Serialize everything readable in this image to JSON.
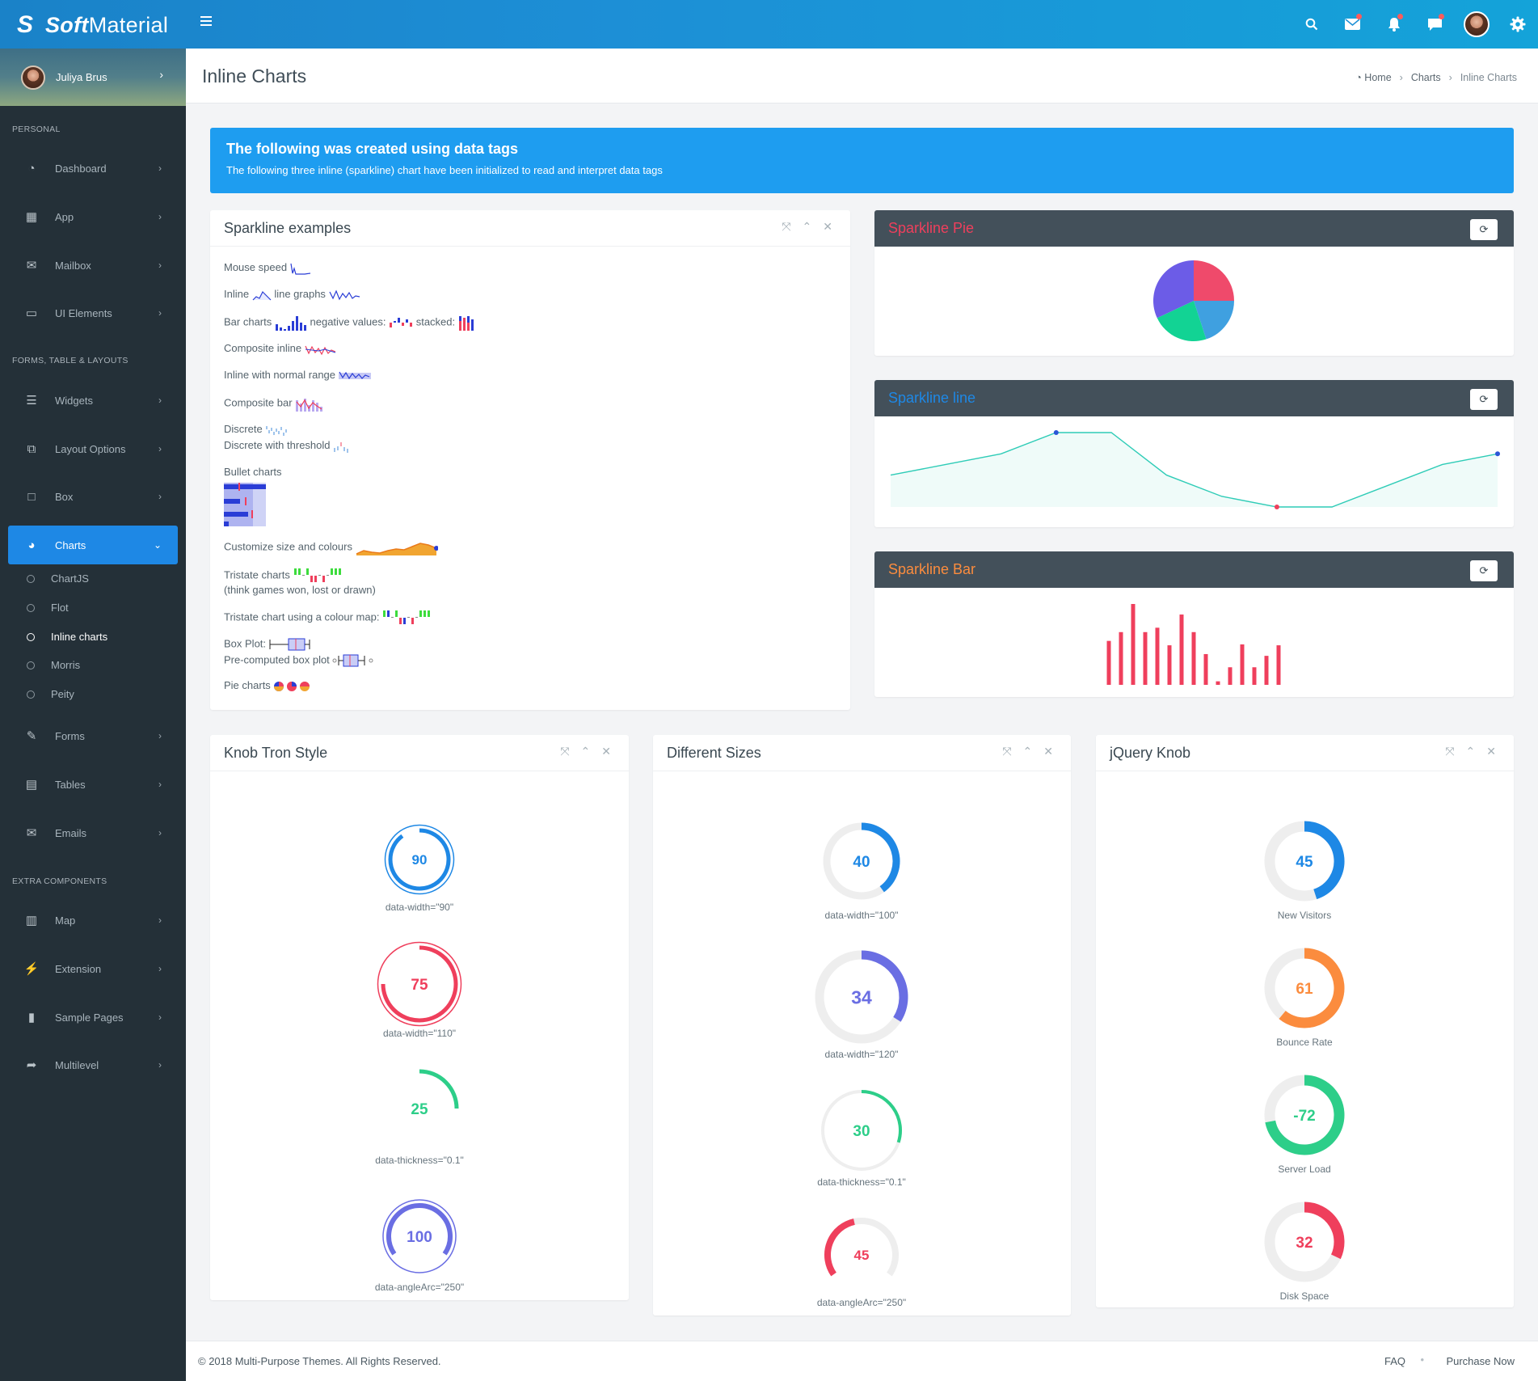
{
  "topbar": {
    "brand_bold": "Soft",
    "brand_light": "Material",
    "icons": [
      "search-icon",
      "envelope-icon",
      "bell-icon",
      "chat-icon",
      "user-avatar",
      "gear-icon"
    ]
  },
  "user": {
    "name": "Juliya Brus"
  },
  "sidebar": {
    "sections": [
      "PERSONAL",
      "FORMS, TABLE & LAYOUTS",
      "EXTRA COMPONENTS"
    ],
    "items": [
      {
        "label": "Dashboard",
        "icon": "dashboard-icon"
      },
      {
        "label": "App",
        "icon": "grid-icon"
      },
      {
        "label": "Mailbox",
        "icon": "envelope-icon"
      },
      {
        "label": "UI Elements",
        "icon": "laptop-icon"
      },
      {
        "label": "Widgets",
        "icon": "bars-icon"
      },
      {
        "label": "Layout Options",
        "icon": "copy-icon"
      },
      {
        "label": "Box",
        "icon": "square-icon"
      },
      {
        "label": "Charts",
        "icon": "pie-icon"
      },
      {
        "label": "Forms",
        "icon": "edit-icon"
      },
      {
        "label": "Tables",
        "icon": "table-icon"
      },
      {
        "label": "Emails",
        "icon": "envelope-open-icon"
      },
      {
        "label": "Map",
        "icon": "map-icon"
      },
      {
        "label": "Extension",
        "icon": "plug-icon"
      },
      {
        "label": "Sample Pages",
        "icon": "file-icon"
      },
      {
        "label": "Multilevel",
        "icon": "share-icon"
      }
    ],
    "charts_sub": [
      "ChartJS",
      "Flot",
      "Inline charts",
      "Morris",
      "Peity"
    ]
  },
  "page": {
    "title": "Inline Charts",
    "breadcrumb": [
      "Home",
      "Charts",
      "Inline Charts"
    ]
  },
  "callout": {
    "title": "The following was created using data tags",
    "text": "The following three inline (sparkline) chart have been initialized to read and interpret data tags"
  },
  "sparkline_box": {
    "title": "Sparkline examples",
    "labels": {
      "mouse": "Mouse speed",
      "inline": "Inline",
      "line_graphs": "line graphs",
      "bar": "Bar charts",
      "negative": "negative values:",
      "stacked": "stacked:",
      "composite": "Composite inline",
      "normal_range": "Inline with normal range",
      "composite_bar": "Composite bar",
      "discrete": "Discrete",
      "discrete_threshold": "Discrete with threshold",
      "bullet": "Bullet charts",
      "customize": "Customize size and colours",
      "tristate": "Tristate charts",
      "tristate_note": "(think games won, lost or drawn)",
      "tristate_map": "Tristate chart using a colour map:",
      "boxplot": "Box Plot:",
      "precomputed": "Pre-computed box plot",
      "pie": "Pie charts"
    }
  },
  "panels": {
    "pie": {
      "title": "Sparkline Pie",
      "color": "#ef3f5c"
    },
    "line": {
      "title": "Sparkline line",
      "color": "#1e88e5"
    },
    "bar": {
      "title": "Sparkline Bar",
      "color": "#fb8c3e"
    }
  },
  "knob_boxes": {
    "tron": "Knob Tron Style",
    "sizes": "Different Sizes",
    "jquery": "jQuery Knob"
  },
  "chart_data": [
    {
      "type": "pie",
      "slices": [
        {
          "value": 25,
          "color": "#ef4a6b"
        },
        {
          "value": 20,
          "color": "#3fa0e0"
        },
        {
          "value": 23,
          "color": "#12d394"
        },
        {
          "value": 32,
          "color": "#6c5ce7"
        }
      ]
    },
    {
      "type": "line",
      "values": [
        5,
        6,
        7,
        9,
        9,
        5,
        3,
        2,
        2,
        4,
        6,
        7
      ],
      "x": [
        0,
        1,
        2,
        3,
        4,
        5,
        6,
        7,
        8,
        9,
        10,
        11
      ],
      "color": "#2fccb7"
    },
    {
      "type": "bar",
      "values": [
        50,
        60,
        92,
        60,
        65,
        45,
        80,
        60,
        35,
        4,
        20,
        46,
        20,
        33,
        45
      ],
      "color": "#ef3f5c"
    }
  ],
  "knobs": {
    "tron": [
      {
        "value": "90",
        "label": "data-width=\"90\"",
        "color": "#1e88e5"
      },
      {
        "value": "75",
        "label": "data-width=\"110\"",
        "color": "#ef3f5c"
      },
      {
        "value": "25",
        "label": "data-thickness=\"0.1\"",
        "color": "#2dce89"
      },
      {
        "value": "100",
        "label": "data-angleArc=\"250\"",
        "color": "#6a6ee3"
      }
    ],
    "sizes": [
      {
        "value": "40",
        "label": "data-width=\"100\"",
        "color": "#1e88e5"
      },
      {
        "value": "34",
        "label": "data-width=\"120\"",
        "color": "#6a6ee3"
      },
      {
        "value": "30",
        "label": "data-thickness=\"0.1\"",
        "color": "#2dce89"
      },
      {
        "value": "45",
        "label": "data-angleArc=\"250\"",
        "color": "#ef3f5c"
      }
    ],
    "jquery": [
      {
        "value": "45",
        "label": "New Visitors",
        "color": "#1e88e5"
      },
      {
        "value": "61",
        "label": "Bounce Rate",
        "color": "#fb8c3e"
      },
      {
        "value": "-72",
        "label": "Server Load",
        "color": "#2dce89"
      },
      {
        "value": "32",
        "label": "Disk Space",
        "color": "#ef3f5c"
      }
    ]
  },
  "footer": {
    "copyright": "© 2018 Multi-Purpose Themes. All Rights Reserved.",
    "faq": "FAQ",
    "purchase": "Purchase Now"
  }
}
